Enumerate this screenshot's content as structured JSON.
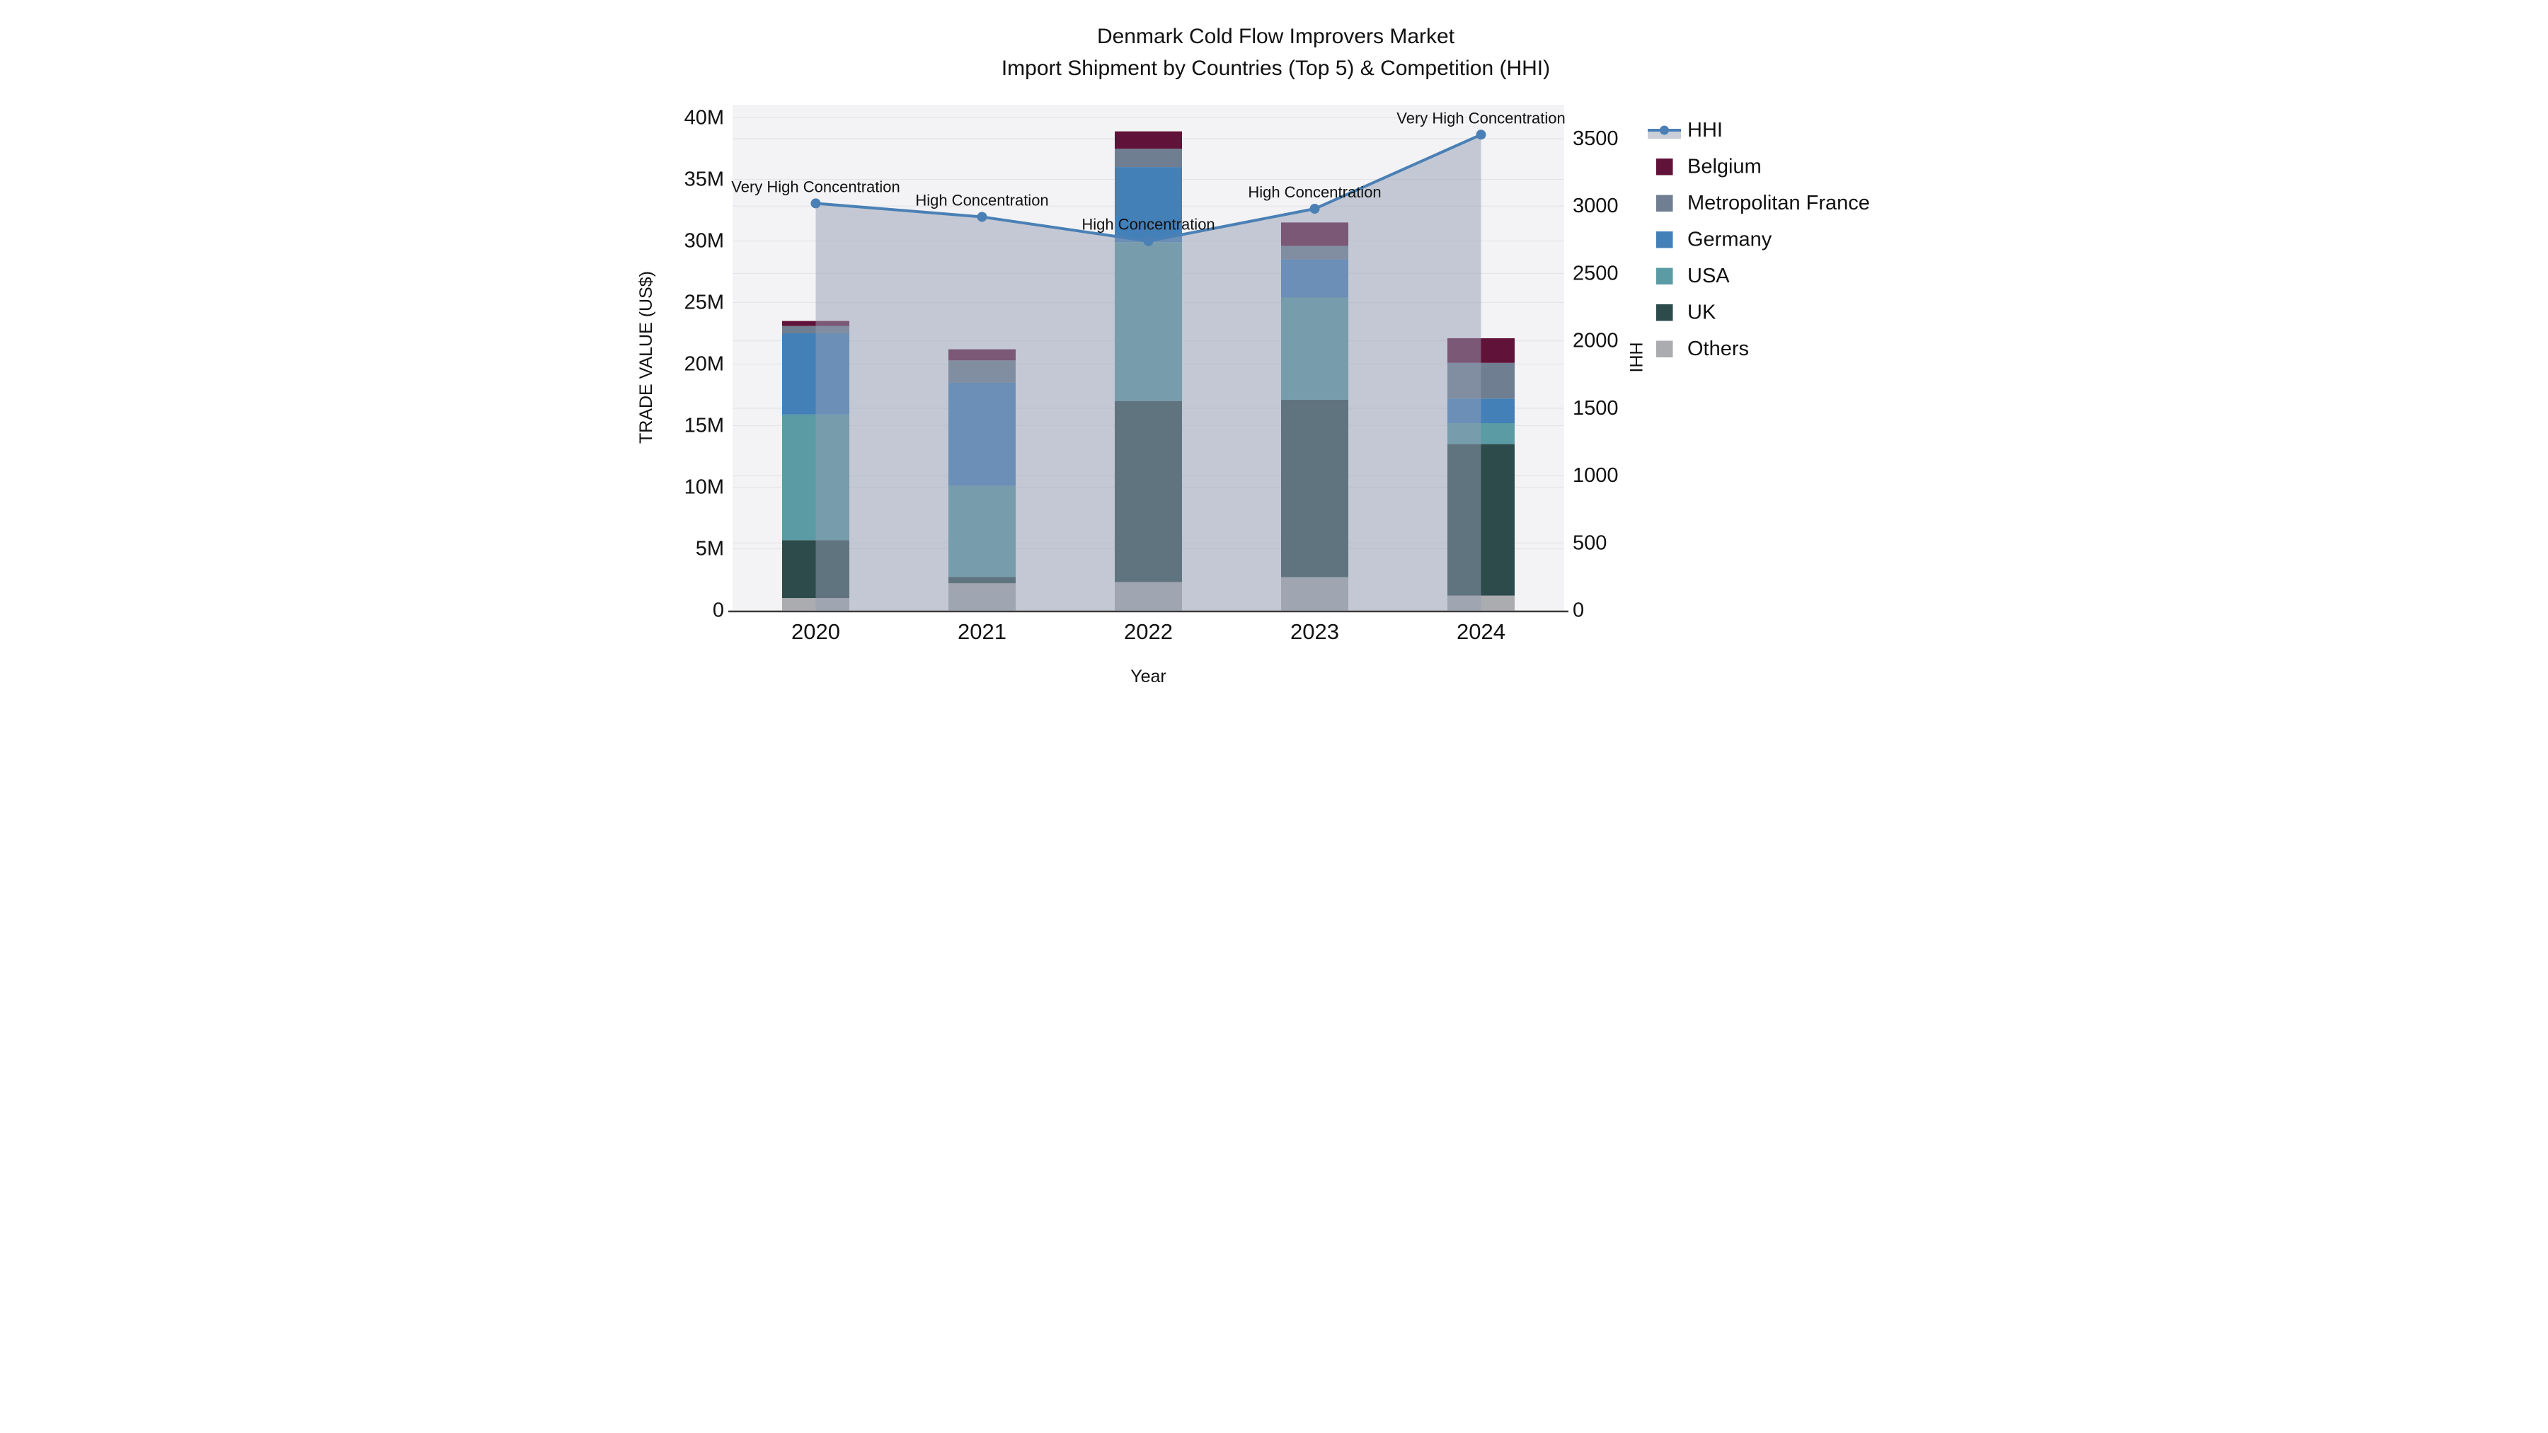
{
  "title": {
    "line1": "Denmark Cold Flow Improvers Market",
    "line2": "Import Shipment by Countries (Top 5) & Competition (HHI)"
  },
  "chart_data": {
    "type": "stacked-bar+line",
    "categories": [
      "2020",
      "2021",
      "2022",
      "2023",
      "2024"
    ],
    "bar_unit": "million US$",
    "series": [
      {
        "name": "Others",
        "color": "#abacaf",
        "values": [
          1.0,
          2.2,
          2.3,
          2.7,
          1.2
        ]
      },
      {
        "name": "UK",
        "color": "#2d4b4b",
        "values": [
          4.7,
          0.5,
          14.7,
          14.4,
          12.3
        ]
      },
      {
        "name": "USA",
        "color": "#5b9ba3",
        "values": [
          10.2,
          7.4,
          12.9,
          8.3,
          1.7
        ]
      },
      {
        "name": "Germany",
        "color": "#4380b8",
        "values": [
          6.6,
          8.4,
          6.1,
          3.1,
          2.0
        ]
      },
      {
        "name": "Metropolitan France",
        "color": "#6f7e90",
        "values": [
          0.6,
          1.8,
          1.5,
          1.1,
          2.9
        ]
      },
      {
        "name": "Belgium",
        "color": "#611238",
        "values": [
          0.4,
          0.9,
          1.4,
          1.9,
          2.0
        ]
      }
    ],
    "bar_totals": [
      23.5,
      21.2,
      38.9,
      31.5,
      22.1
    ],
    "line_series": {
      "name": "HHI",
      "color": "#4a80b5",
      "fill_color": "rgba(147,157,179,0.5)",
      "values": [
        3020,
        2920,
        2740,
        2980,
        3530
      ]
    },
    "annotations": [
      {
        "x": "2020",
        "label": "Very High Concentration"
      },
      {
        "x": "2021",
        "label": "High Concentration"
      },
      {
        "x": "2022",
        "label": "High Concentration"
      },
      {
        "x": "2023",
        "label": "High Concentration"
      },
      {
        "x": "2024",
        "label": "Very High Concentration"
      }
    ],
    "xlabel": "Year",
    "ylabel_left": "TRADE VALUE (US$)",
    "ylabel_right": "HHI",
    "y_left_ticks": [
      "0",
      "5M",
      "10M",
      "15M",
      "20M",
      "25M",
      "30M",
      "35M",
      "40M"
    ],
    "y_right_ticks": [
      "0",
      "500",
      "1000",
      "1500",
      "2000",
      "2500",
      "3000",
      "3500"
    ],
    "ylim_left_millions": [
      0,
      40
    ],
    "ylim_right": [
      0,
      3500
    ],
    "grid": true,
    "legend_position": "right",
    "legend_order": [
      "HHI",
      "Belgium",
      "Metropolitan France",
      "Germany",
      "USA",
      "UK",
      "Others"
    ]
  },
  "colors": {
    "plot_bg": "#f3f3f5",
    "grid": "#e4e5e8",
    "axis_line": "#3b3b3b",
    "text": "#111111"
  }
}
